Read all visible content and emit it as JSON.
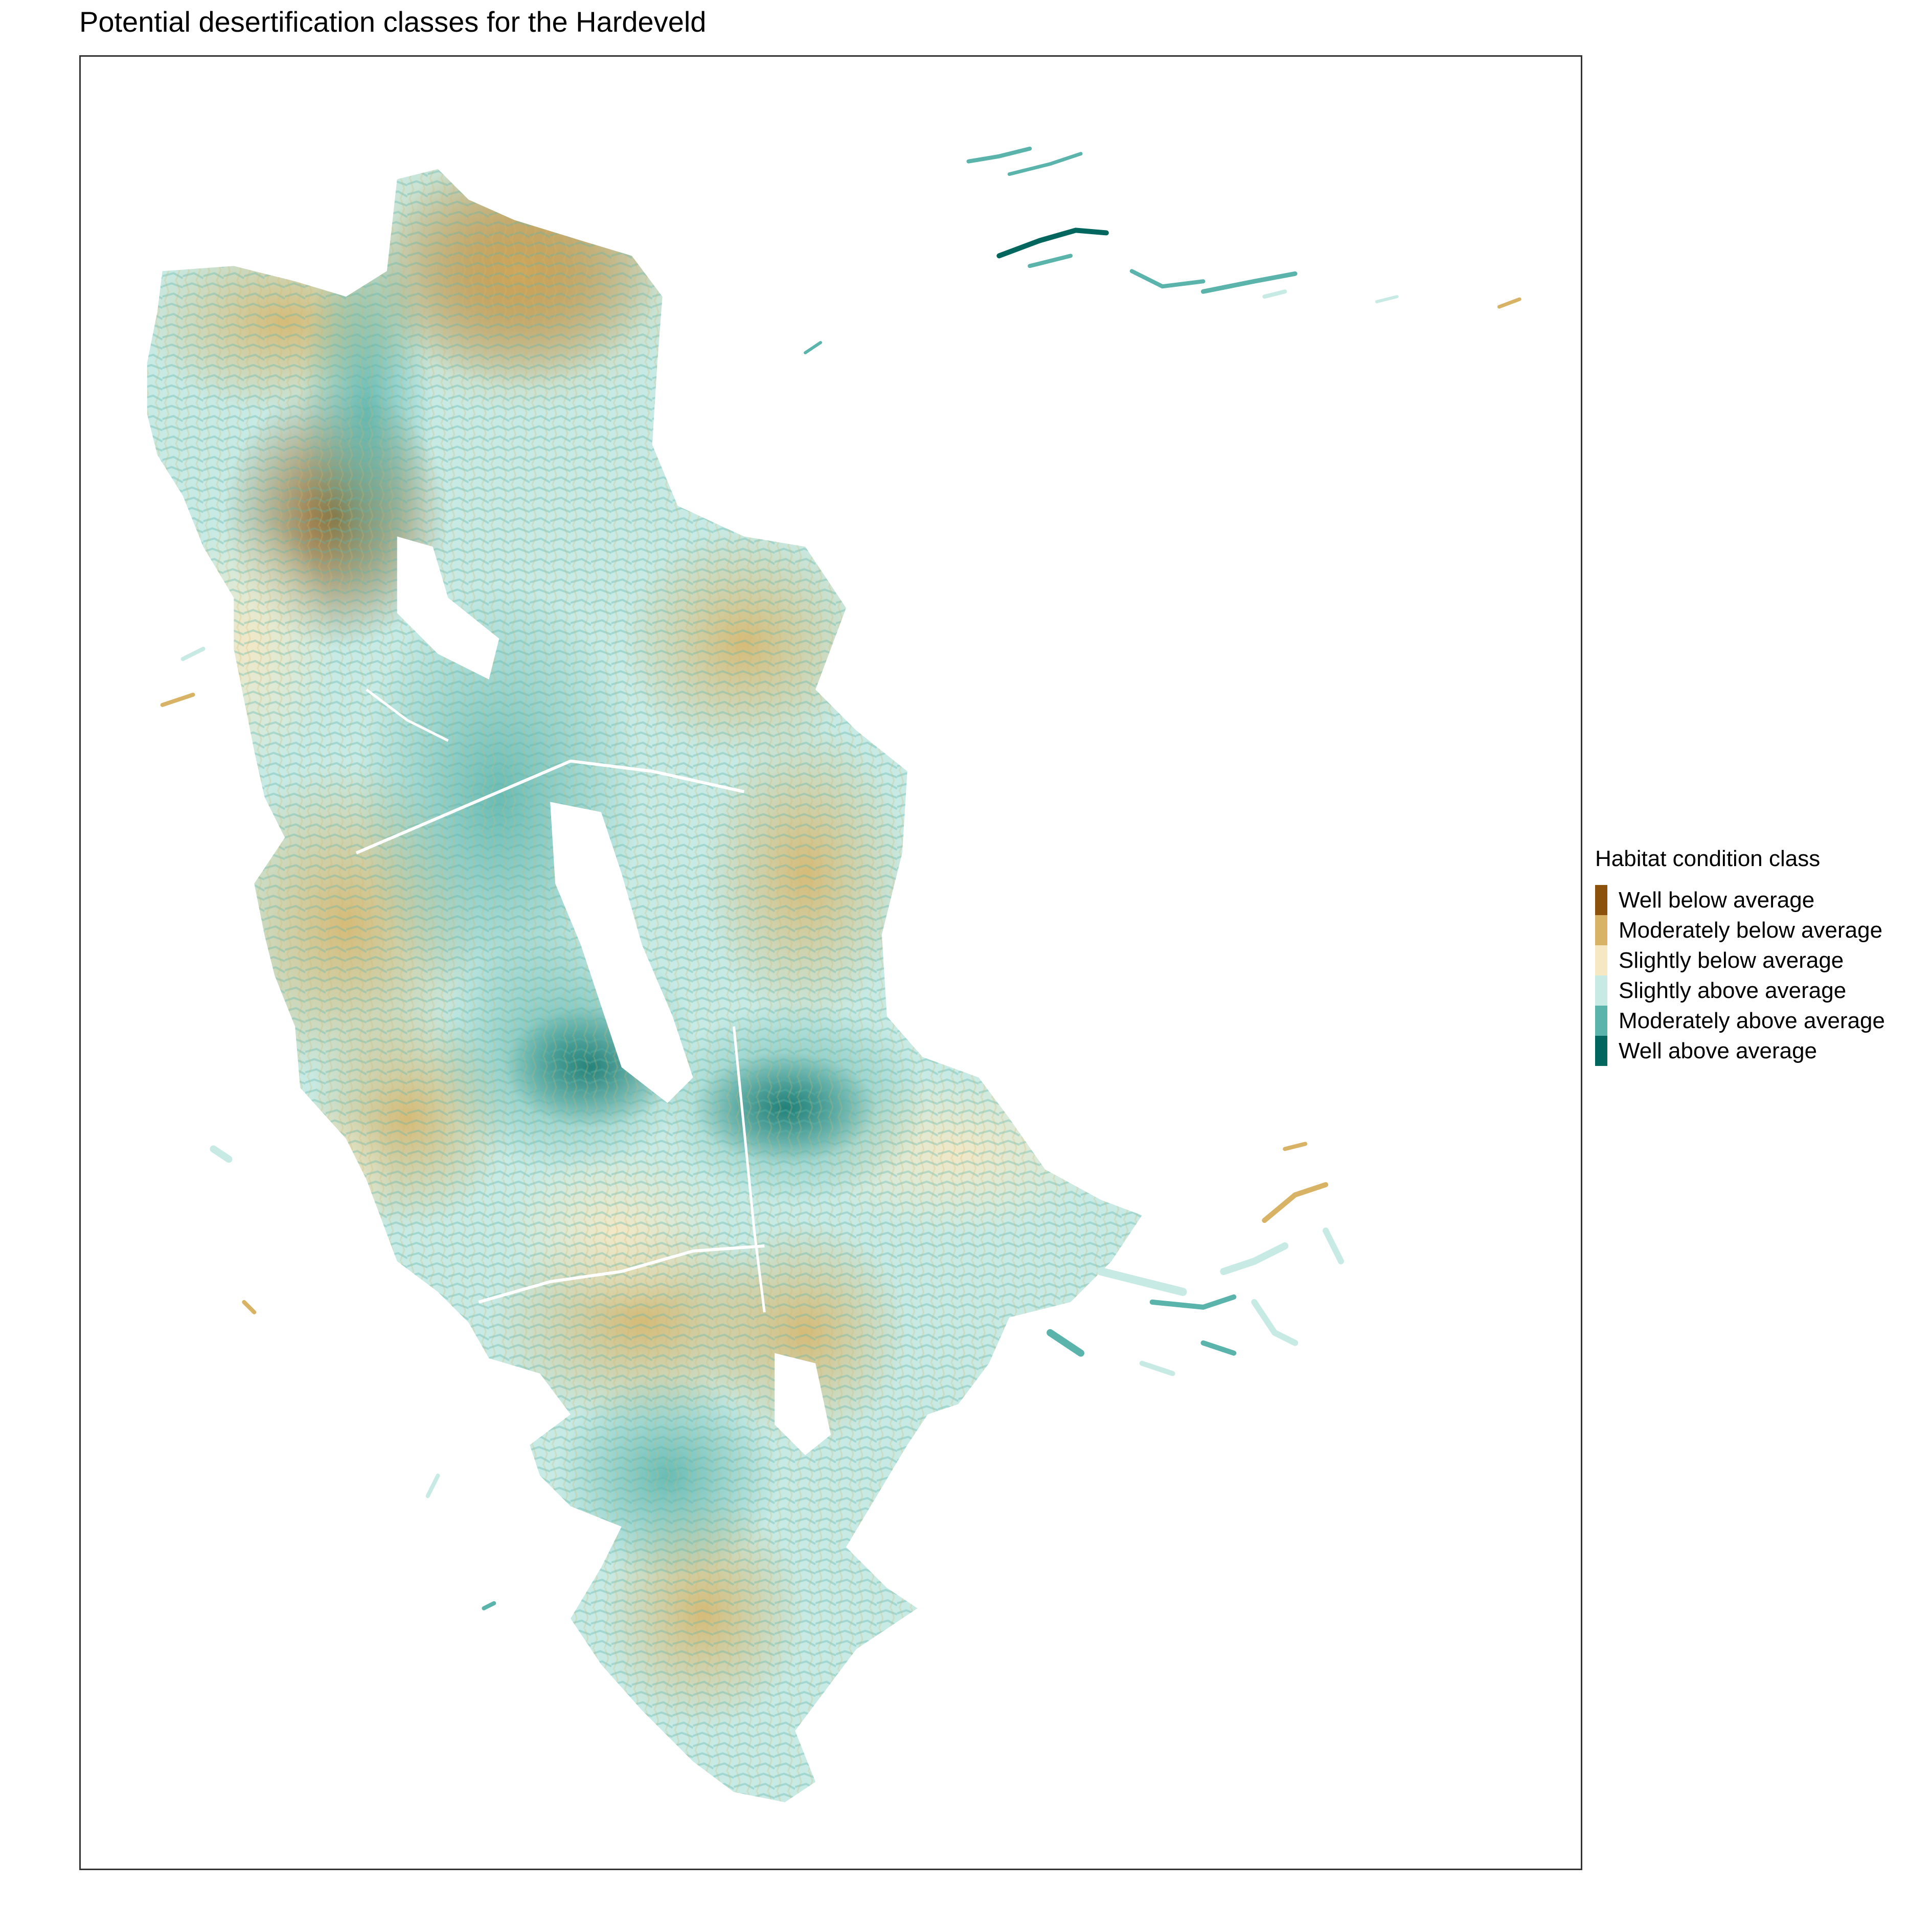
{
  "title": "Potential desertification classes for the Hardeveld",
  "legend": {
    "title": "Habitat condition class",
    "items": [
      {
        "label": "Well below average",
        "color": "#8c510a"
      },
      {
        "label": "Moderately below average",
        "color": "#d8b365"
      },
      {
        "label": "Slightly below average",
        "color": "#f6e8c3"
      },
      {
        "label": "Slightly above average",
        "color": "#c7eae5"
      },
      {
        "label": "Moderately above average",
        "color": "#5ab4ac"
      },
      {
        "label": "Well above average",
        "color": "#01665e"
      }
    ]
  }
}
